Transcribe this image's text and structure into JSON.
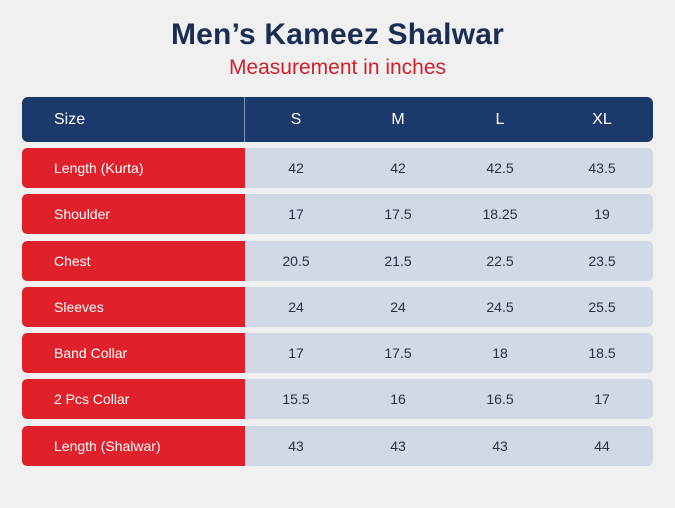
{
  "header": {
    "title": "Men’s Kameez Shalwar",
    "subtitle": "Measurement in inches"
  },
  "table": {
    "size_label": "Size",
    "sizes": [
      "S",
      "M",
      "L",
      "XL"
    ],
    "rows": [
      {
        "label": "Length (Kurta)",
        "values": [
          "42",
          "42",
          "42.5",
          "43.5"
        ]
      },
      {
        "label": "Shoulder",
        "values": [
          "17",
          "17.5",
          "18.25",
          "19"
        ]
      },
      {
        "label": "Chest",
        "values": [
          "20.5",
          "21.5",
          "22.5",
          "23.5"
        ]
      },
      {
        "label": "Sleeves",
        "values": [
          "24",
          "24",
          "24.5",
          "25.5"
        ]
      },
      {
        "label": "Band Collar",
        "values": [
          "17",
          "17.5",
          "18",
          "18.5"
        ]
      },
      {
        "label": "2 Pcs Collar",
        "values": [
          "15.5",
          "16",
          "16.5",
          "17"
        ]
      },
      {
        "label": "Length (Shalwar)",
        "values": [
          "43",
          "43",
          "43",
          "44"
        ]
      }
    ]
  },
  "colors": {
    "title": "#1b2c55",
    "subtitle": "#d0202b",
    "header_bg": "#1b3a6b",
    "label_bg": "#e0212b",
    "value_bg": "#d1d8e6",
    "page_bg": "#f0f0f0"
  }
}
